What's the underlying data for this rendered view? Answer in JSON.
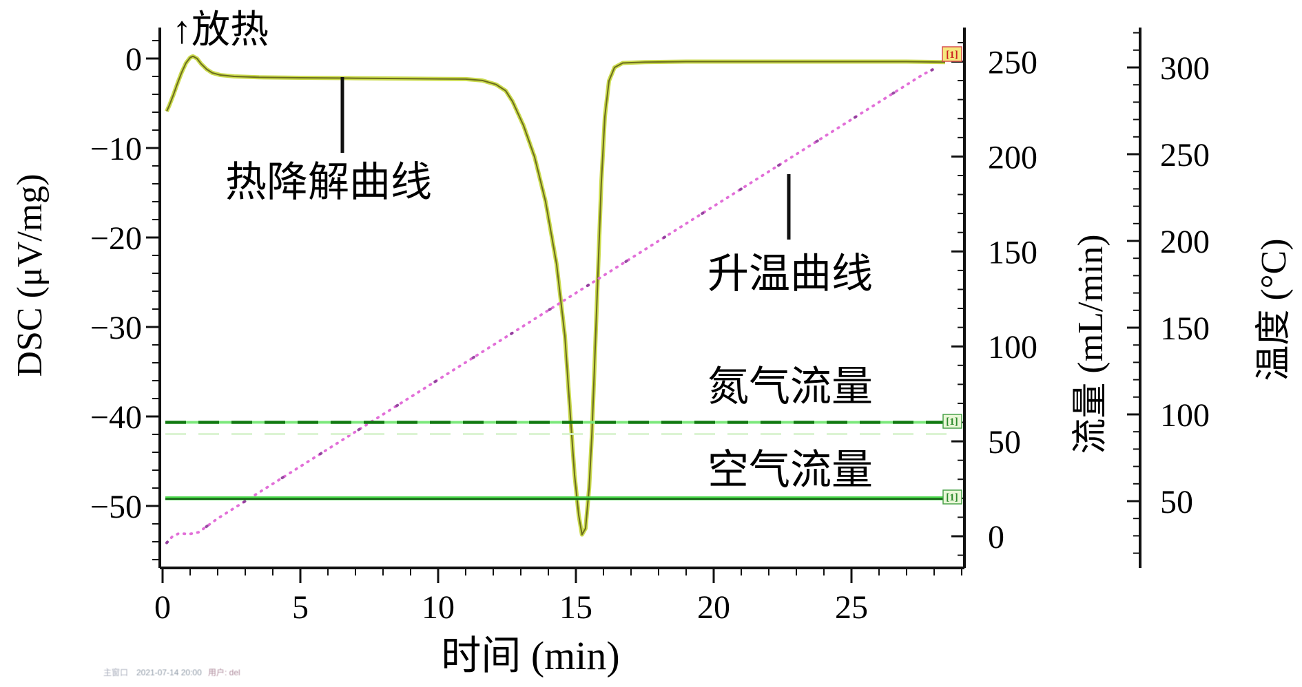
{
  "annotations": {
    "exo_up": "↑放热",
    "dsc_curve": "热降解曲线",
    "heating_curve": "升温曲线",
    "nitrogen_flow": "氮气流量",
    "air_flow": "空气流量",
    "curve_marker": "[1]"
  },
  "footer": {
    "window_label": "主窗口",
    "datetime": "2021-07-14 20:00",
    "user": "用户: del"
  },
  "chart_data": {
    "type": "line",
    "title": "",
    "xlabel": "时间 (min)",
    "ylabel_left": "DSC (μV/mg)",
    "ylabel_right_flow": "流量 (mL/min)",
    "ylabel_right_temp": "温度 (°C)",
    "grid": false,
    "legend_position": "none",
    "x_axis": {
      "range": [
        0,
        29.2
      ],
      "major_ticks": [
        0,
        5,
        10,
        15,
        20,
        25
      ],
      "minor_step": 1
    },
    "dsc_axis": {
      "range": [
        -56.9,
        3.5
      ],
      "major_ticks": [
        0,
        -10,
        -20,
        -30,
        -40,
        -50
      ],
      "minor_step": 2
    },
    "flow_axis": {
      "range": [
        -16,
        268
      ],
      "major_ticks": [
        0,
        50,
        100,
        150,
        200,
        250
      ],
      "minor_step": 10
    },
    "temp_axis": {
      "range": [
        12,
        323
      ],
      "major_ticks": [
        50,
        100,
        150,
        200,
        250,
        300
      ],
      "minor_step": 10
    },
    "series": [
      {
        "name": "热降解曲线",
        "kind": "dsc",
        "axis": "dsc",
        "unit": "μV/mg",
        "style": "solid",
        "colors": {
          "outer": "#cbdb4e",
          "core": "#6b6c1e"
        },
        "points": [
          [
            0.15,
            -5.9
          ],
          [
            0.25,
            -5.2
          ],
          [
            0.4,
            -4.0
          ],
          [
            0.55,
            -2.7
          ],
          [
            0.7,
            -1.5
          ],
          [
            0.85,
            -0.5
          ],
          [
            1.0,
            0.1
          ],
          [
            1.1,
            0.25
          ],
          [
            1.25,
            0.0
          ],
          [
            1.4,
            -0.6
          ],
          [
            1.6,
            -1.2
          ],
          [
            1.8,
            -1.6
          ],
          [
            2.1,
            -1.85
          ],
          [
            2.6,
            -2.0
          ],
          [
            3.5,
            -2.1
          ],
          [
            5,
            -2.15
          ],
          [
            7,
            -2.2
          ],
          [
            9,
            -2.25
          ],
          [
            11,
            -2.3
          ],
          [
            11.6,
            -2.45
          ],
          [
            12.1,
            -2.9
          ],
          [
            12.45,
            -3.6
          ],
          [
            12.7,
            -4.8
          ],
          [
            13.1,
            -7.5
          ],
          [
            13.5,
            -11
          ],
          [
            13.9,
            -16
          ],
          [
            14.3,
            -23
          ],
          [
            14.6,
            -31
          ],
          [
            14.8,
            -40
          ],
          [
            14.95,
            -46.5
          ],
          [
            15.1,
            -51
          ],
          [
            15.22,
            -53.2
          ],
          [
            15.35,
            -52.5
          ],
          [
            15.48,
            -48
          ],
          [
            15.58,
            -42
          ],
          [
            15.68,
            -34
          ],
          [
            15.8,
            -24
          ],
          [
            15.92,
            -14
          ],
          [
            16.05,
            -6.5
          ],
          [
            16.2,
            -2.5
          ],
          [
            16.4,
            -1.0
          ],
          [
            16.7,
            -0.5
          ],
          [
            17.5,
            -0.4
          ],
          [
            19,
            -0.35
          ],
          [
            21,
            -0.35
          ],
          [
            23,
            -0.35
          ],
          [
            25,
            -0.35
          ],
          [
            27,
            -0.35
          ],
          [
            28.4,
            -0.4
          ]
        ]
      },
      {
        "name": "升温曲线",
        "kind": "temperature",
        "axis": "temp",
        "unit": "°C",
        "style": "dotted",
        "colors": {
          "main": "#e26fd8",
          "dark": "#8b3a97"
        },
        "points": [
          [
            0.15,
            26
          ],
          [
            0.35,
            29.5
          ],
          [
            0.6,
            31.5
          ],
          [
            0.95,
            31
          ],
          [
            1.3,
            32
          ],
          [
            2,
            40
          ],
          [
            3,
            50
          ],
          [
            5,
            70
          ],
          [
            7,
            90
          ],
          [
            9,
            110
          ],
          [
            11,
            130
          ],
          [
            13,
            150
          ],
          [
            15,
            170
          ],
          [
            17,
            190
          ],
          [
            19,
            210
          ],
          [
            21,
            230
          ],
          [
            23,
            250
          ],
          [
            25,
            270
          ],
          [
            26.5,
            285
          ],
          [
            27.6,
            296
          ],
          [
            28.1,
            300
          ]
        ]
      },
      {
        "name": "氮气流量",
        "kind": "nitrogen-flow",
        "axis": "flow",
        "unit": "mL/min",
        "style": "dashed",
        "value": 60,
        "x_range": [
          0.1,
          28.5
        ],
        "colors": {
          "dash": "#117a11",
          "base": "#7de87d",
          "ghost": "#d9f3cf"
        }
      },
      {
        "name": "空气流量",
        "kind": "air-flow",
        "axis": "flow",
        "unit": "mL/min",
        "style": "solid",
        "value": 20,
        "x_range": [
          0.1,
          28.5
        ],
        "colors": {
          "main": "#49d549",
          "core": "#0d4f0d"
        }
      }
    ]
  }
}
